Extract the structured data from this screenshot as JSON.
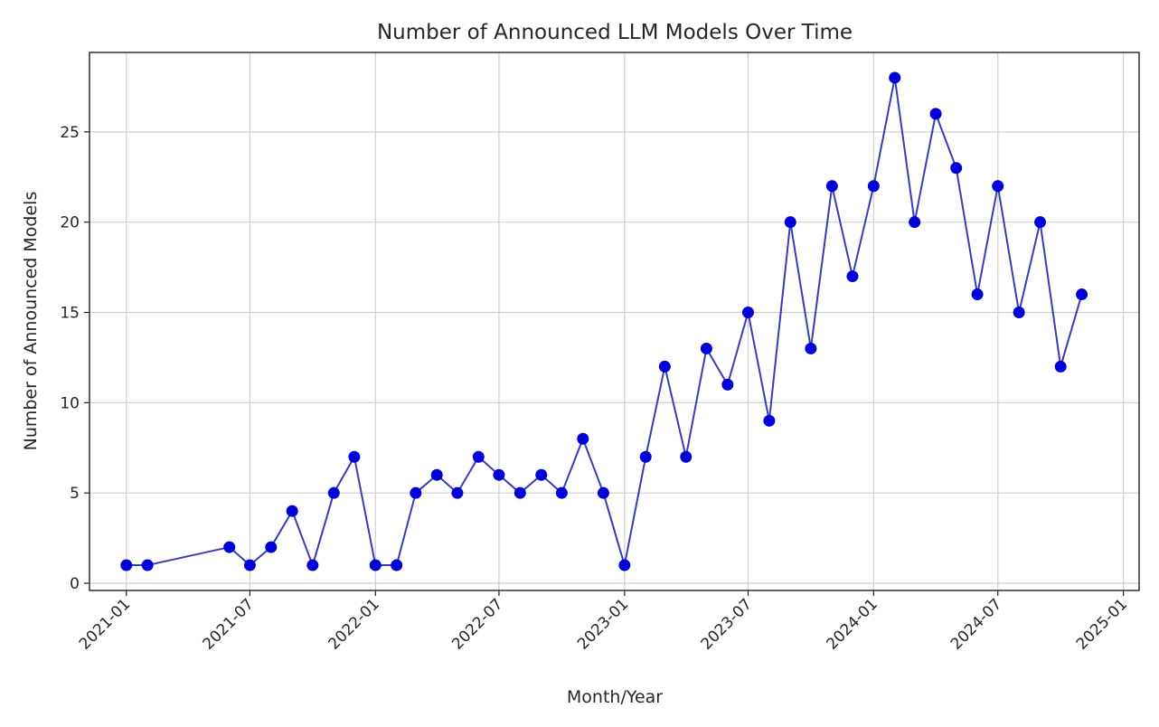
{
  "chart_data": {
    "type": "line",
    "title": "Number of Announced LLM Models Over Time",
    "xlabel": "Month/Year",
    "ylabel": "Number of Announced Models",
    "x_tick_labels": [
      "2021-01",
      "2021-07",
      "2022-01",
      "2022-07",
      "2023-01",
      "2023-07",
      "2024-01",
      "2024-07",
      "2025-01"
    ],
    "y_tick_labels": [
      "0",
      "5",
      "10",
      "15",
      "20",
      "25"
    ],
    "ylim": [
      -0.4,
      29.4
    ],
    "xlim": [
      "2020-11-08",
      "2025-01-24"
    ],
    "grid": true,
    "legend": "none",
    "colors": {
      "line": "#3a3ab8",
      "marker": "#0000d8",
      "grid": "#cfcfcf",
      "frame": "#222222",
      "text": "#262626"
    },
    "series": [
      {
        "x": [
          "2021-01",
          "2021-02",
          "2021-06",
          "2021-07",
          "2021-08",
          "2021-09",
          "2021-10",
          "2021-11",
          "2021-12",
          "2022-01",
          "2022-02",
          "2022-03",
          "2022-04",
          "2022-05",
          "2022-06",
          "2022-07",
          "2022-08",
          "2022-09",
          "2022-10",
          "2022-11",
          "2022-12",
          "2023-01",
          "2023-02",
          "2023-03",
          "2023-04",
          "2023-05",
          "2023-06",
          "2023-07",
          "2023-08",
          "2023-09",
          "2023-10",
          "2023-11",
          "2023-12",
          "2024-01",
          "2024-02",
          "2024-03",
          "2024-04",
          "2024-05",
          "2024-06",
          "2024-07",
          "2024-08",
          "2024-09",
          "2024-10",
          "2024-11"
        ],
        "values": [
          1,
          1,
          2,
          1,
          2,
          4,
          1,
          5,
          7,
          1,
          1,
          5,
          6,
          5,
          7,
          6,
          5,
          6,
          5,
          8,
          5,
          1,
          7,
          12,
          7,
          13,
          11,
          15,
          9,
          20,
          13,
          22,
          17,
          22,
          28,
          20,
          26,
          23,
          16,
          22,
          15,
          20,
          12,
          16
        ]
      }
    ]
  }
}
